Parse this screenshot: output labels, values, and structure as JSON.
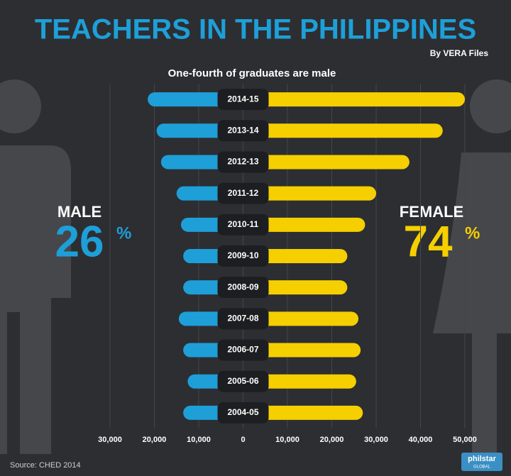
{
  "chart_data": {
    "type": "butterfly",
    "title": "TEACHERS IN THE PHILIPPINES",
    "byline": "By VERA Files",
    "subtitle": "One-fourth of graduates are male",
    "categories": [
      "2014-15",
      "2013-14",
      "2012-13",
      "2011-12",
      "2010-11",
      "2009-10",
      "2008-09",
      "2007-08",
      "2006-07",
      "2005-06",
      "2004-05"
    ],
    "series": [
      {
        "name": "MALE",
        "color": "#1e9fd8",
        "side": "left",
        "values": [
          21500,
          19500,
          18500,
          15000,
          14000,
          13500,
          13500,
          14500,
          13500,
          12500,
          13500
        ]
      },
      {
        "name": "FEMALE",
        "color": "#f5cf00",
        "side": "right",
        "values": [
          50000,
          45000,
          37500,
          30000,
          27500,
          23500,
          23500,
          26000,
          26500,
          25500,
          27000
        ]
      }
    ],
    "shares": [
      {
        "label": "MALE",
        "value": "26",
        "unit": "%"
      },
      {
        "label": "FEMALE",
        "value": "74",
        "unit": "%"
      }
    ],
    "xlim": [
      -30000,
      50000
    ],
    "xticks": [
      {
        "value": -30000,
        "label": "30,000"
      },
      {
        "value": -20000,
        "label": "20,000"
      },
      {
        "value": -10000,
        "label": "10,000"
      },
      0,
      {
        "value": 10000,
        "label": "10,000"
      },
      {
        "value": 20000,
        "label": "20,000"
      },
      {
        "value": 30000,
        "label": "30,000"
      },
      {
        "value": 40000,
        "label": "40,000"
      },
      {
        "value": 50000,
        "label": "50,000"
      }
    ],
    "grid": true,
    "source": "Source: CHED 2014",
    "logo": [
      "philstar",
      "GLOBAL"
    ]
  }
}
